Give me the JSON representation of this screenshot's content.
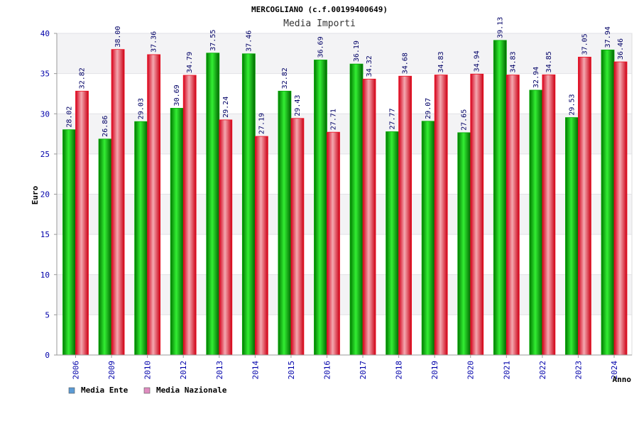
{
  "chart_data": {
    "type": "bar",
    "title": "MERCOGLIANO (c.f.00199400649)",
    "subtitle": "Media Importi",
    "xlabel": "Anno",
    "ylabel": "Euro",
    "ylim": [
      0,
      40
    ],
    "yticks": [
      0,
      5,
      10,
      15,
      20,
      25,
      30,
      35,
      40
    ],
    "grid": true,
    "legend_position": "bottom-left",
    "categories": [
      "2006",
      "2009",
      "2010",
      "2012",
      "2013",
      "2014",
      "2015",
      "2016",
      "2017",
      "2018",
      "2019",
      "2020",
      "2021",
      "2022",
      "2023",
      "2024"
    ],
    "series": [
      {
        "name": "Media Ente",
        "bar_color": "#00aa00",
        "legend_color": "#5b9bd5",
        "values": [
          28.02,
          26.86,
          29.03,
          30.69,
          37.55,
          37.46,
          32.82,
          36.69,
          36.19,
          27.77,
          29.07,
          27.65,
          39.13,
          32.94,
          29.53,
          37.94
        ],
        "labels": [
          "28.02",
          "26.86",
          "29.03",
          "30.69",
          "37.55",
          "37.46",
          "32.82",
          "36.69",
          "36.19",
          "27.77",
          "29.07",
          "27.65",
          "39.13",
          "32.94",
          "29.53",
          "37.94"
        ]
      },
      {
        "name": "Media Nazionale",
        "bar_color": "#ee1122",
        "legend_color": "#e08cc0",
        "values": [
          32.82,
          38.0,
          37.36,
          34.79,
          29.24,
          27.19,
          29.43,
          27.71,
          34.32,
          34.68,
          34.83,
          34.94,
          34.83,
          34.85,
          37.05,
          36.46
        ],
        "labels": [
          "32.82",
          "38.00",
          "37.36",
          "34.79",
          "29.24",
          "27.19",
          "29.43",
          "27.71",
          "34.32",
          "34.68",
          "34.83",
          "34.94",
          "34.83",
          "34.85",
          "37.05",
          "36.46"
        ]
      }
    ]
  }
}
